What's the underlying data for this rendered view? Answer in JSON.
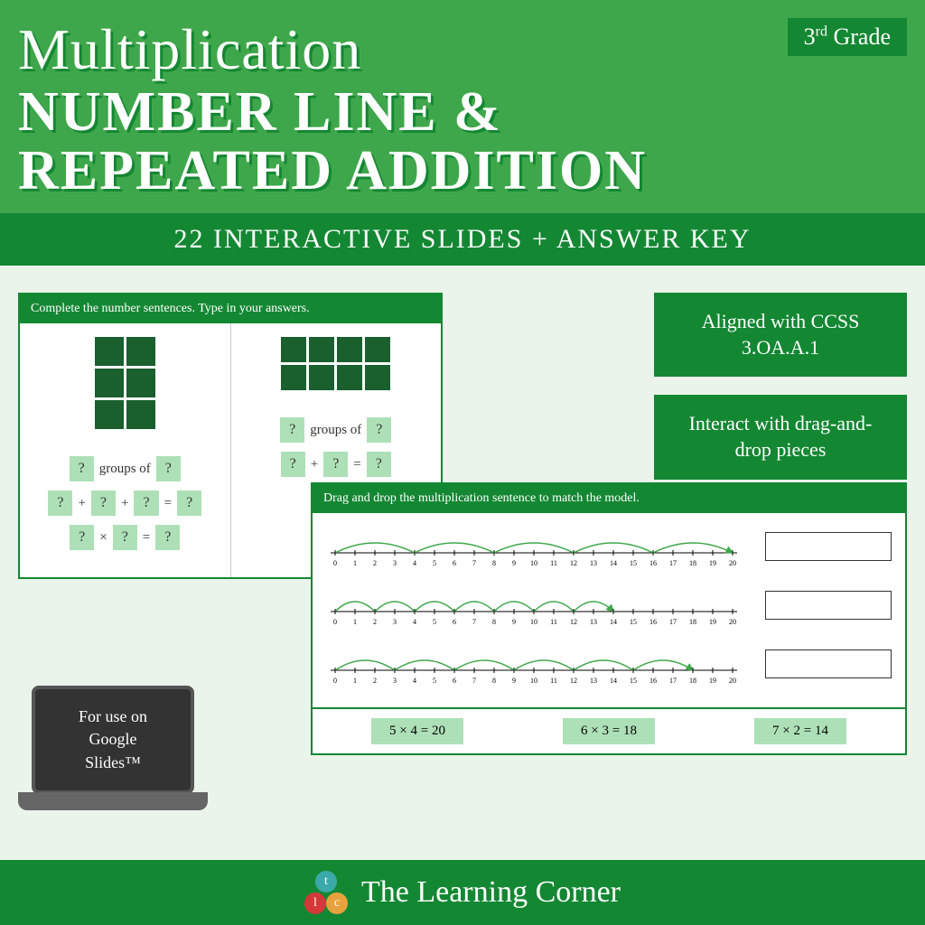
{
  "header": {
    "grade_num": "3",
    "grade_suffix": "rd",
    "grade_word": "Grade",
    "title_line1": "Multiplication",
    "title_line2": "NUMBER LINE &",
    "title_line3": "REPEATED ADDITION",
    "subtitle": "22 INTERACTIVE SLIDES + ANSWER KEY"
  },
  "side": {
    "badge1_line1": "Aligned with CCSS",
    "badge1_line2": "3.OA.A.1",
    "badge2_line1": "Interact with drag-and-",
    "badge2_line2": "drop pieces"
  },
  "slide1": {
    "instruction": "Complete the number sentences. Type in your answers.",
    "panel1": {
      "grid_rows": 3,
      "grid_cols": 2,
      "groups_text": "groups of",
      "q": "?",
      "row2_count": 3,
      "op_plus": "+",
      "op_eq": "=",
      "op_times": "×"
    },
    "panel2": {
      "grid_rows": 2,
      "grid_cols": 4,
      "groups_text": "groups of",
      "q": "?",
      "row2_count": 2,
      "op_plus": "+",
      "op_eq": "="
    }
  },
  "slide2": {
    "instruction": "Drag and drop the multiplication sentence to match the model.",
    "numberline": {
      "max": 20,
      "tick_labels": [
        "0",
        "1",
        "2",
        "3",
        "4",
        "5",
        "6",
        "7",
        "8",
        "9",
        "10",
        "11",
        "12",
        "13",
        "14",
        "15",
        "16",
        "17",
        "18",
        "19",
        "20"
      ],
      "lines": [
        {
          "step": 4,
          "jumps": 5,
          "color": "#3fa74b"
        },
        {
          "step": 2,
          "jumps": 7,
          "color": "#3fa74b"
        },
        {
          "step": 3,
          "jumps": 6,
          "color": "#3fa74b"
        }
      ]
    },
    "answers": [
      "5 × 4 = 20",
      "6 × 3 = 18",
      "7 × 2 = 14"
    ]
  },
  "laptop": {
    "line1": "For use on",
    "line2": "Google",
    "line3": "Slides™"
  },
  "footer": {
    "brand": "The Learning Corner",
    "logo": {
      "t": "t",
      "l": "l",
      "c": "c"
    }
  },
  "colors": {
    "bg": "#eaf4eb",
    "green_mid": "#3fa74b",
    "green_dark": "#148733",
    "green_darker": "#1a5f2e",
    "green_light": "#aee0b8"
  }
}
